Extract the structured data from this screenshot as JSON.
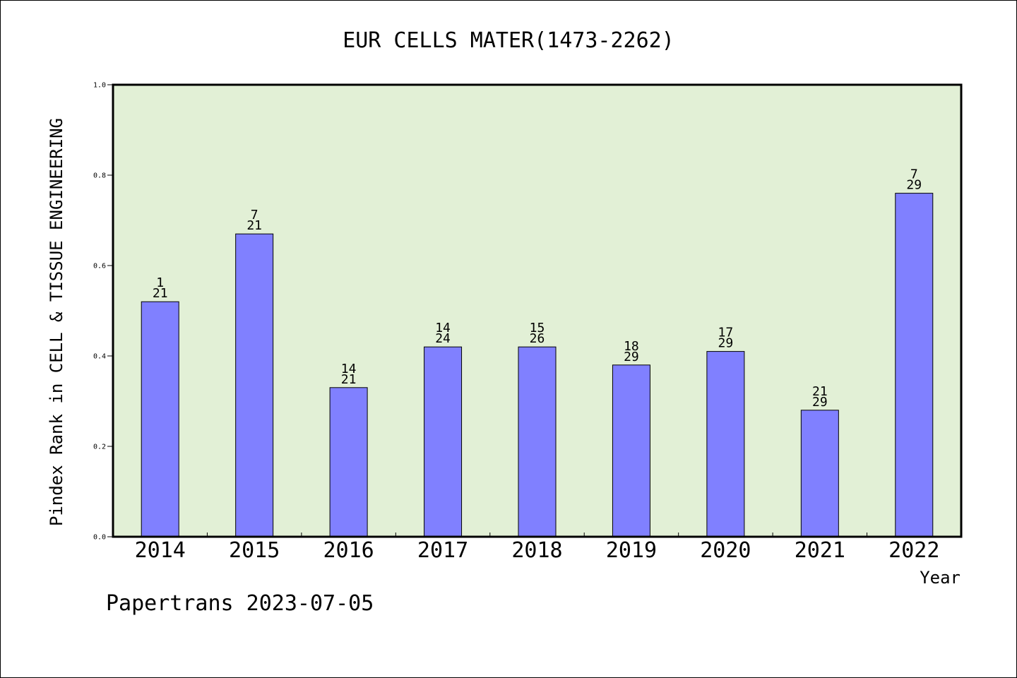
{
  "chart_data": {
    "type": "bar",
    "title": "EUR CELLS MATER(1473-2262)",
    "ylabel": "Pindex Rank in CELL & TISSUE ENGINEERING",
    "xlabel": "Year",
    "footer": "Papertrans 2023-07-05",
    "ylim": [
      0,
      1.0
    ],
    "yticks": [
      "0.0",
      "0.2",
      "0.4",
      "0.6",
      "0.8",
      "1.0"
    ],
    "categories": [
      "2014",
      "2015",
      "2016",
      "2017",
      "2018",
      "2019",
      "2020",
      "2021",
      "2022"
    ],
    "values": [
      0.52,
      0.67,
      0.33,
      0.42,
      0.42,
      0.38,
      0.41,
      0.28,
      0.76
    ],
    "rank_labels": [
      "1",
      "7",
      "14",
      "14",
      "15",
      "18",
      "17",
      "21",
      "7"
    ],
    "total_labels": [
      "21",
      "21",
      "21",
      "24",
      "26",
      "29",
      "29",
      "29",
      "29"
    ],
    "grid": false,
    "colors": {
      "plot_background": "#e2f0d6",
      "bar_fill": "#8080ff",
      "bar_stroke": "#000000"
    }
  }
}
